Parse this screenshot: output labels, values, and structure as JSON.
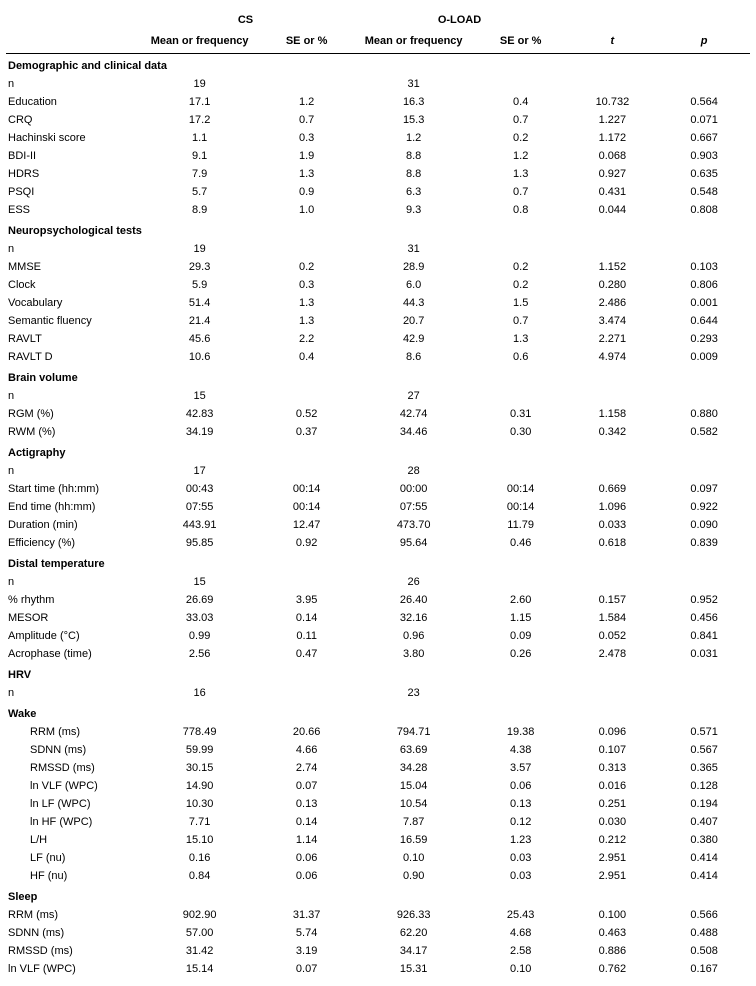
{
  "headers": {
    "cs": "CS",
    "oload": "O-LOAD",
    "mean": "Mean or frequency",
    "se": "SE or %",
    "t": "t",
    "p": "p"
  },
  "sections": [
    {
      "title": "Demographic and clinical data",
      "rows": [
        {
          "label": "n",
          "cs_mean": "19",
          "cs_se": "",
          "ol_mean": "31",
          "ol_se": "",
          "t": "",
          "p": ""
        },
        {
          "label": "Education",
          "cs_mean": "17.1",
          "cs_se": "1.2",
          "ol_mean": "16.3",
          "ol_se": "0.4",
          "t": "10.732",
          "p": "0.564"
        },
        {
          "label": "CRQ",
          "cs_mean": "17.2",
          "cs_se": "0.7",
          "ol_mean": "15.3",
          "ol_se": "0.7",
          "t": "1.227",
          "p": "0.071"
        },
        {
          "label": "Hachinski score",
          "cs_mean": "1.1",
          "cs_se": "0.3",
          "ol_mean": "1.2",
          "ol_se": "0.2",
          "t": "1.172",
          "p": "0.667"
        },
        {
          "label": "BDI-II",
          "cs_mean": "9.1",
          "cs_se": "1.9",
          "ol_mean": "8.8",
          "ol_se": "1.2",
          "t": "0.068",
          "p": "0.903"
        },
        {
          "label": "HDRS",
          "cs_mean": "7.9",
          "cs_se": "1.3",
          "ol_mean": "8.8",
          "ol_se": "1.3",
          "t": "0.927",
          "p": "0.635"
        },
        {
          "label": "PSQI",
          "cs_mean": "5.7",
          "cs_se": "0.9",
          "ol_mean": "6.3",
          "ol_se": "0.7",
          "t": "0.431",
          "p": "0.548"
        },
        {
          "label": "ESS",
          "cs_mean": "8.9",
          "cs_se": "1.0",
          "ol_mean": "9.3",
          "ol_se": "0.8",
          "t": "0.044",
          "p": "0.808"
        }
      ]
    },
    {
      "title": "Neuropsychological tests",
      "rows": [
        {
          "label": "n",
          "cs_mean": "19",
          "cs_se": "",
          "ol_mean": "31",
          "ol_se": "",
          "t": "",
          "p": ""
        },
        {
          "label": "MMSE",
          "cs_mean": "29.3",
          "cs_se": "0.2",
          "ol_mean": "28.9",
          "ol_se": "0.2",
          "t": "1.152",
          "p": "0.103"
        },
        {
          "label": "Clock",
          "cs_mean": "5.9",
          "cs_se": "0.3",
          "ol_mean": "6.0",
          "ol_se": "0.2",
          "t": "0.280",
          "p": "0.806"
        },
        {
          "label": "Vocabulary",
          "cs_mean": "51.4",
          "cs_se": "1.3",
          "ol_mean": "44.3",
          "ol_se": "1.5",
          "t": "2.486",
          "p": "0.001"
        },
        {
          "label": "Semantic fluency",
          "cs_mean": "21.4",
          "cs_se": "1.3",
          "ol_mean": "20.7",
          "ol_se": "0.7",
          "t": "3.474",
          "p": "0.644"
        },
        {
          "label": "RAVLT",
          "cs_mean": "45.6",
          "cs_se": "2.2",
          "ol_mean": "42.9",
          "ol_se": "1.3",
          "t": "2.271",
          "p": "0.293"
        },
        {
          "label": "RAVLT D",
          "cs_mean": "10.6",
          "cs_se": "0.4",
          "ol_mean": "8.6",
          "ol_se": "0.6",
          "t": "4.974",
          "p": "0.009"
        }
      ]
    },
    {
      "title": "Brain volume",
      "rows": [
        {
          "label": "n",
          "cs_mean": "15",
          "cs_se": "",
          "ol_mean": "27",
          "ol_se": "",
          "t": "",
          "p": ""
        },
        {
          "label": "RGM (%)",
          "cs_mean": "42.83",
          "cs_se": "0.52",
          "ol_mean": "42.74",
          "ol_se": "0.31",
          "t": "1.158",
          "p": "0.880"
        },
        {
          "label": "RWM (%)",
          "cs_mean": "34.19",
          "cs_se": "0.37",
          "ol_mean": "34.46",
          "ol_se": "0.30",
          "t": "0.342",
          "p": "0.582"
        }
      ]
    },
    {
      "title": "Actigraphy",
      "rows": [
        {
          "label": "n",
          "cs_mean": "17",
          "cs_se": "",
          "ol_mean": "28",
          "ol_se": "",
          "t": "",
          "p": ""
        },
        {
          "label": "Start time (hh:mm)",
          "cs_mean": "00:43",
          "cs_se": "00:14",
          "ol_mean": "00:00",
          "ol_se": "00:14",
          "t": "0.669",
          "p": "0.097"
        },
        {
          "label": "End time (hh:mm)",
          "cs_mean": "07:55",
          "cs_se": "00:14",
          "ol_mean": "07:55",
          "ol_se": "00:14",
          "t": "1.096",
          "p": "0.922"
        },
        {
          "label": "Duration (min)",
          "cs_mean": "443.91",
          "cs_se": "12.47",
          "ol_mean": "473.70",
          "ol_se": "11.79",
          "t": "0.033",
          "p": "0.090"
        },
        {
          "label": "Efficiency (%)",
          "cs_mean": "95.85",
          "cs_se": "0.92",
          "ol_mean": "95.64",
          "ol_se": "0.46",
          "t": "0.618",
          "p": "0.839"
        }
      ]
    },
    {
      "title": "Distal temperature",
      "rows": [
        {
          "label": "n",
          "cs_mean": "15",
          "cs_se": "",
          "ol_mean": "26",
          "ol_se": "",
          "t": "",
          "p": ""
        },
        {
          "label": "% rhythm",
          "cs_mean": "26.69",
          "cs_se": "3.95",
          "ol_mean": "26.40",
          "ol_se": "2.60",
          "t": "0.157",
          "p": "0.952"
        },
        {
          "label": "MESOR",
          "cs_mean": "33.03",
          "cs_se": "0.14",
          "ol_mean": "32.16",
          "ol_se": "1.15",
          "t": "1.584",
          "p": "0.456"
        },
        {
          "label": "Amplitude (°C)",
          "cs_mean": "0.99",
          "cs_se": "0.11",
          "ol_mean": "0.96",
          "ol_se": "0.09",
          "t": "0.052",
          "p": "0.841"
        },
        {
          "label": "Acrophase (time)",
          "cs_mean": "2.56",
          "cs_se": "0.47",
          "ol_mean": "3.80",
          "ol_se": "0.26",
          "t": "2.478",
          "p": "0.031"
        }
      ]
    },
    {
      "title": "HRV",
      "rows": [
        {
          "label": "n",
          "cs_mean": "16",
          "cs_se": "",
          "ol_mean": "23",
          "ol_se": "",
          "t": "",
          "p": ""
        }
      ]
    },
    {
      "title": "Wake",
      "indent": true,
      "rows": [
        {
          "label": "RRM (ms)",
          "cs_mean": "778.49",
          "cs_se": "20.66",
          "ol_mean": "794.71",
          "ol_se": "19.38",
          "t": "0.096",
          "p": "0.571"
        },
        {
          "label": "SDNN (ms)",
          "cs_mean": "59.99",
          "cs_se": "4.66",
          "ol_mean": "63.69",
          "ol_se": "4.38",
          "t": "0.107",
          "p": "0.567"
        },
        {
          "label": "RMSSD (ms)",
          "cs_mean": "30.15",
          "cs_se": "2.74",
          "ol_mean": "34.28",
          "ol_se": "3.57",
          "t": "0.313",
          "p": "0.365"
        },
        {
          "label": "ln VLF (WPC)",
          "cs_mean": "14.90",
          "cs_se": "0.07",
          "ol_mean": "15.04",
          "ol_se": "0.06",
          "t": "0.016",
          "p": "0.128"
        },
        {
          "label": "ln LF (WPC)",
          "cs_mean": "10.30",
          "cs_se": "0.13",
          "ol_mean": "10.54",
          "ol_se": "0.13",
          "t": "0.251",
          "p": "0.194"
        },
        {
          "label": "ln HF (WPC)",
          "cs_mean": "7.71",
          "cs_se": "0.14",
          "ol_mean": "7.87",
          "ol_se": "0.12",
          "t": "0.030",
          "p": "0.407"
        },
        {
          "label": "L/H",
          "cs_mean": "15.10",
          "cs_se": "1.14",
          "ol_mean": "16.59",
          "ol_se": "1.23",
          "t": "0.212",
          "p": "0.380"
        },
        {
          "label": "LF (nu)",
          "cs_mean": "0.16",
          "cs_se": "0.06",
          "ol_mean": "0.10",
          "ol_se": "0.03",
          "t": "2.951",
          "p": "0.414"
        },
        {
          "label": "HF (nu)",
          "cs_mean": "0.84",
          "cs_se": "0.06",
          "ol_mean": "0.90",
          "ol_se": "0.03",
          "t": "2.951",
          "p": "0.414"
        }
      ]
    },
    {
      "title": "Sleep",
      "indent": false,
      "rows": [
        {
          "label": "RRM (ms)",
          "cs_mean": "902.90",
          "cs_se": "31.37",
          "ol_mean": "926.33",
          "ol_se": "25.43",
          "t": "0.100",
          "p": "0.566"
        },
        {
          "label": "SDNN (ms)",
          "cs_mean": "57.00",
          "cs_se": "5.74",
          "ol_mean": "62.20",
          "ol_se": "4.68",
          "t": "0.463",
          "p": "0.488"
        },
        {
          "label": "RMSSD (ms)",
          "cs_mean": "31.42",
          "cs_se": "3.19",
          "ol_mean": "34.17",
          "ol_se": "2.58",
          "t": "0.886",
          "p": "0.508"
        },
        {
          "label": "ln VLF (WPC)",
          "cs_mean": "15.14",
          "cs_se": "0.07",
          "ol_mean": "15.31",
          "ol_se": "0.10",
          "t": "0.762",
          "p": "0.167"
        }
      ]
    }
  ]
}
